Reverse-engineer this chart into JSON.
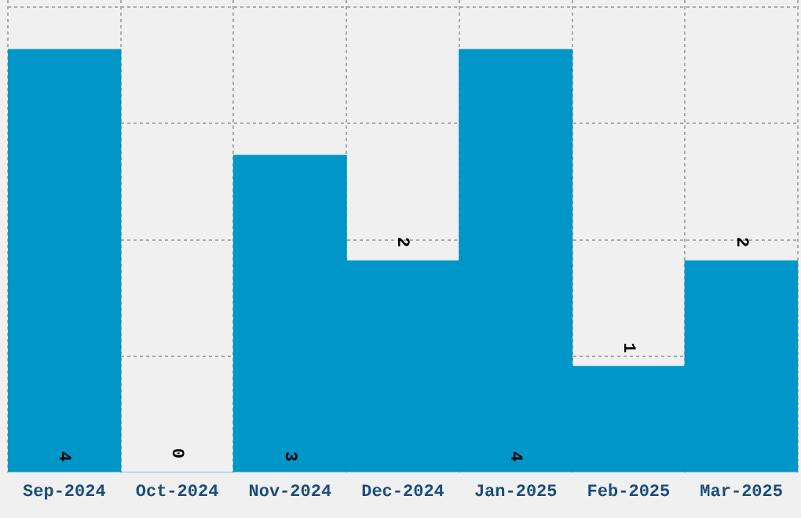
{
  "chart_data": {
    "type": "bar",
    "categories": [
      "Sep-2024",
      "Oct-2024",
      "Nov-2024",
      "Dec-2024",
      "Jan-2025",
      "Feb-2025",
      "Mar-2025"
    ],
    "values": [
      4,
      0,
      3,
      2,
      4,
      1,
      2
    ],
    "color": "#0096c8",
    "data_labels": true,
    "grid": true,
    "ylim": [
      0,
      4.47
    ],
    "yticks": [
      {
        "value": 1.1,
        "label": null
      },
      {
        "value": 2.2,
        "label": null
      },
      {
        "value": 3.3,
        "label": null
      },
      {
        "value": 4.4,
        "label": null
      }
    ],
    "tick_labels": "x"
  }
}
